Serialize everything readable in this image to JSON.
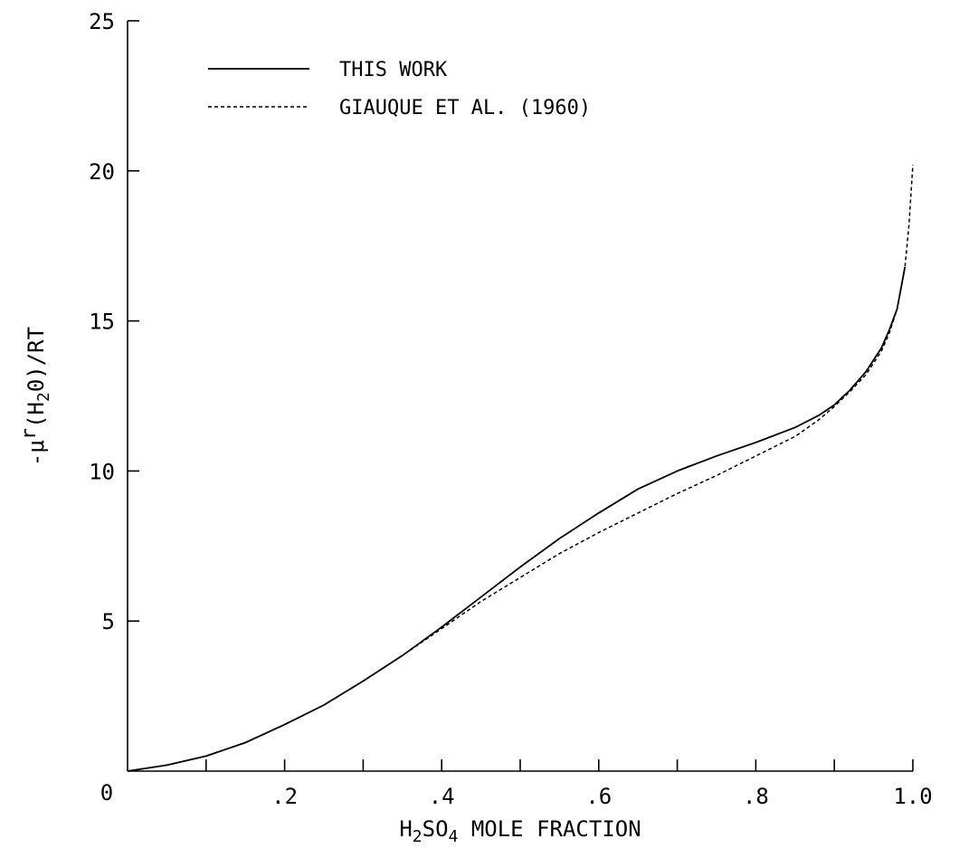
{
  "chart_data": {
    "type": "line",
    "title": "",
    "xlabel": {
      "pre": "H",
      "sub1": "2",
      "mid": "SO",
      "sub2": "4",
      "post": " MOLE FRACTION"
    },
    "ylabel": {
      "pre": "-μ",
      "sup": "r",
      "paren_open": "(H",
      "sub": "2",
      "paren_close": "0)/RT"
    },
    "xlim": [
      0,
      1.0
    ],
    "ylim": [
      0,
      25
    ],
    "x_ticks": [
      0,
      0.1,
      0.2,
      0.3,
      0.4,
      0.5,
      0.6,
      0.7,
      0.8,
      0.9,
      1.0
    ],
    "x_tick_labels": [
      {
        "v": 0.2,
        "label": ".2"
      },
      {
        "v": 0.4,
        "label": ".4"
      },
      {
        "v": 0.6,
        "label": ".6"
      },
      {
        "v": 0.8,
        "label": ".8"
      },
      {
        "v": 1.0,
        "label": "1.0"
      }
    ],
    "origin_label": "0",
    "y_tick_labels": [
      {
        "v": 5,
        "label": "5"
      },
      {
        "v": 10,
        "label": "10"
      },
      {
        "v": 15,
        "label": "15"
      },
      {
        "v": 20,
        "label": "20"
      },
      {
        "v": 25,
        "label": "25"
      }
    ],
    "grid": false,
    "legend_position": "top-left",
    "series": [
      {
        "name": "THIS WORK",
        "style": "solid",
        "color": "#000000",
        "x": [
          0.0,
          0.05,
          0.1,
          0.15,
          0.2,
          0.25,
          0.3,
          0.35,
          0.4,
          0.45,
          0.5,
          0.55,
          0.6,
          0.65,
          0.7,
          0.75,
          0.8,
          0.85,
          0.88,
          0.9,
          0.92,
          0.94,
          0.96,
          0.97,
          0.98,
          0.99
        ],
        "y": [
          0.0,
          0.2,
          0.5,
          0.95,
          1.55,
          2.2,
          3.0,
          3.85,
          4.8,
          5.8,
          6.8,
          7.75,
          8.6,
          9.4,
          10.0,
          10.5,
          10.95,
          11.45,
          11.85,
          12.2,
          12.7,
          13.3,
          14.1,
          14.7,
          15.4,
          16.8
        ]
      },
      {
        "name": "GIAUQUE ET AL. (1960)",
        "style": "dashed",
        "color": "#000000",
        "x": [
          0.0,
          0.05,
          0.1,
          0.15,
          0.2,
          0.25,
          0.3,
          0.35,
          0.4,
          0.45,
          0.5,
          0.55,
          0.6,
          0.65,
          0.7,
          0.75,
          0.8,
          0.85,
          0.88,
          0.9,
          0.92,
          0.94,
          0.96,
          0.97,
          0.98,
          0.99,
          0.995,
          1.0
        ],
        "y": [
          0.0,
          0.2,
          0.5,
          0.95,
          1.55,
          2.2,
          3.0,
          3.85,
          4.75,
          5.65,
          6.45,
          7.25,
          7.95,
          8.6,
          9.25,
          9.85,
          10.5,
          11.15,
          11.7,
          12.15,
          12.65,
          13.2,
          14.0,
          14.6,
          15.4,
          16.8,
          18.2,
          20.2
        ]
      }
    ]
  }
}
